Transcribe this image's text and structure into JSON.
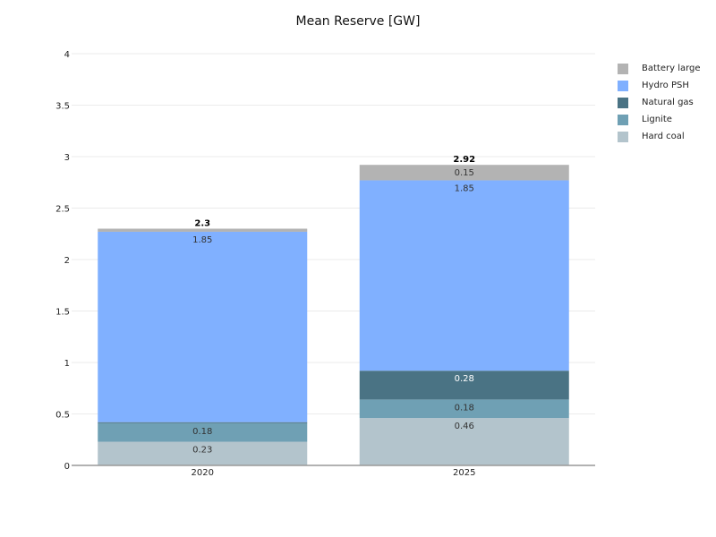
{
  "chart_data": {
    "type": "bar",
    "stacked": true,
    "title": "Mean Reserve [GW]",
    "xlabel": "",
    "ylabel": "",
    "categories": [
      "2020",
      "2025"
    ],
    "ylim": [
      0,
      4
    ],
    "yticks": [
      0,
      0.5,
      1,
      1.5,
      2,
      2.5,
      3,
      3.5,
      4
    ],
    "ytick_labels": [
      "0",
      "0.5",
      "1",
      "1.5",
      "2",
      "2.5",
      "3",
      "3.5",
      "4"
    ],
    "grid": true,
    "legend_position": "top-right",
    "series": [
      {
        "name": "Hard coal",
        "color": "#b3c4cc",
        "values": [
          0.23,
          0.46
        ],
        "labels": [
          "0.23",
          "0.46"
        ],
        "label_color": "#333333"
      },
      {
        "name": "Lignite",
        "color": "#6fa0b4",
        "values": [
          0.18,
          0.18
        ],
        "labels": [
          "0.18",
          "0.18"
        ],
        "label_color": "#333333"
      },
      {
        "name": "Natural gas",
        "color": "#4a7384",
        "values": [
          0.01,
          0.28
        ],
        "labels": [
          "",
          "0.28"
        ],
        "label_color": "#ffffff"
      },
      {
        "name": "Hydro PSH",
        "color": "#80b0ff",
        "values": [
          1.85,
          1.85
        ],
        "labels": [
          "1.85",
          "1.85"
        ],
        "label_color": "#333333"
      },
      {
        "name": "Battery large",
        "color": "#b3b3b3",
        "values": [
          0.03,
          0.15
        ],
        "labels": [
          "",
          "0.15"
        ],
        "label_color": "#333333"
      }
    ],
    "totals": [
      2.3,
      2.92
    ],
    "total_labels": [
      "2.3",
      "2.92"
    ]
  }
}
